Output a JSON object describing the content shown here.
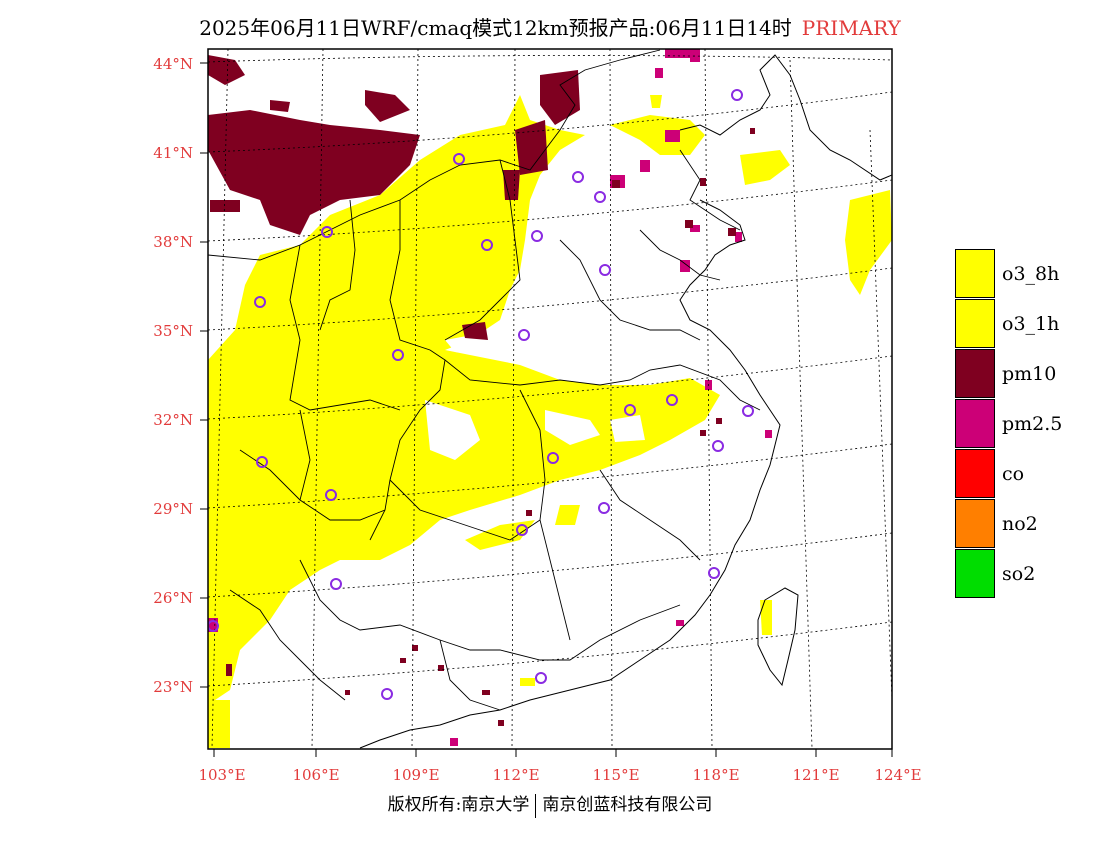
{
  "title": {
    "main": "2025年06月11日WRF/cmaq模式12km预报产品:06月11日14时",
    "tag": "PRIMARY"
  },
  "map": {
    "lat_labels": [
      "44°N",
      "41°N",
      "38°N",
      "35°N",
      "32°N",
      "29°N",
      "26°N",
      "23°N"
    ],
    "lon_labels": [
      "103°E",
      "106°E",
      "109°E",
      "112°E",
      "115°E",
      "118°E",
      "121°E",
      "124°E"
    ],
    "colors": {
      "o3": "#ffff00",
      "pm10": "#800020",
      "pm25": "#cc0077",
      "station_marker": "#8a2be2",
      "grid": "#000000",
      "boundary": "#000000"
    }
  },
  "legend": [
    {
      "label": "o3_8h",
      "color": "#ffff00"
    },
    {
      "label": "o3_1h",
      "color": "#ffff00"
    },
    {
      "label": "pm10",
      "color": "#7f0020"
    },
    {
      "label": "pm2.5",
      "color": "#cc0077"
    },
    {
      "label": "co",
      "color": "#ff0000"
    },
    {
      "label": "no2",
      "color": "#ff7f00"
    },
    {
      "label": "so2",
      "color": "#00dd00"
    }
  ],
  "footer": {
    "left": "版权所有:南京大学",
    "right": "南京创蓝科技有限公司"
  }
}
